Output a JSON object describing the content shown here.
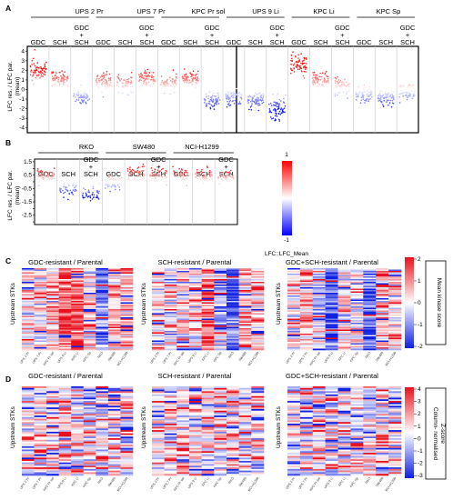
{
  "panel_a": {
    "letter": "A",
    "ylabel_lines": [
      "LFC res. / LFC par.",
      "(mean)"
    ],
    "groups": [
      {
        "name": "UPS 2 Pr",
        "dot_scale": 1
      },
      {
        "name": "UPS 7 Pr",
        "dot_scale": 1
      },
      {
        "name": "KPC Pr sol",
        "dot_scale": 1
      },
      {
        "name": "UPS 9 Li",
        "dot_scale": 1.3
      },
      {
        "name": "KPC Li",
        "dot_scale": 1.4
      },
      {
        "name": "KPC Sp",
        "dot_scale": 1
      }
    ],
    "y_ticks": [
      "4",
      "3",
      "2",
      "1",
      "0",
      "-1",
      "-2",
      "-3",
      "-4"
    ]
  },
  "panel_b": {
    "letter": "B",
    "ylabel_lines": [
      "LFC res. / LFC par.",
      "(mean)"
    ],
    "groups": [
      {
        "name": "RKO"
      },
      {
        "name": "SW480"
      },
      {
        "name": "NCI-H1299"
      }
    ],
    "y_ticks": [
      "1.5",
      "1",
      "0.5",
      "0",
      "-0.5",
      "-1",
      "-1.5",
      "-2",
      "-2.5",
      "-3"
    ]
  },
  "treatments": {
    "gdc": "GDC",
    "sch": "SCH",
    "combo_lines": [
      "GDC",
      "+",
      "SCH"
    ]
  },
  "colorbar_b": {
    "max_label": "1",
    "min_label": "-1",
    "title": "LFC::LFC_Mean",
    "colors": [
      "#ff0000",
      "#ffffff",
      "#0000ff"
    ]
  },
  "panel_c": {
    "letter": "C",
    "titles": [
      "GDC-resistant / Parental",
      "SCH-resistant / Parental",
      "GDC+SCH-resistant / Parental"
    ],
    "ylabel": "Upstream STKs",
    "colorbar_ticks": [
      "2",
      "1",
      "0",
      "-1",
      "-2"
    ],
    "colorbar_label": "Mean kinase score"
  },
  "panel_d": {
    "letter": "D",
    "titles": [
      "GDC-resistant / Parental",
      "SCH-resistant / Parental",
      "GDC+SCH-resistant / Parental"
    ],
    "ylabel": "Upstream STKs",
    "colorbar_ticks": [
      "4",
      "3",
      "2",
      "1",
      "0",
      "-1",
      "-2",
      "-3"
    ],
    "colorbar_label_lines": [
      "Column- normalised",
      "Z-score"
    ]
  },
  "heatmap_columns": [
    "UPS 2 Pr",
    "UPS 7 Pr",
    "KPC Pr sol",
    "UPS 9 Li",
    "KPC Li",
    "KPC Sp",
    "RKO",
    "SW480",
    "NCI-H1299"
  ],
  "colors": {
    "red": "#e8101c",
    "blue": "#1020e0",
    "neutral": "#ffffff"
  }
}
